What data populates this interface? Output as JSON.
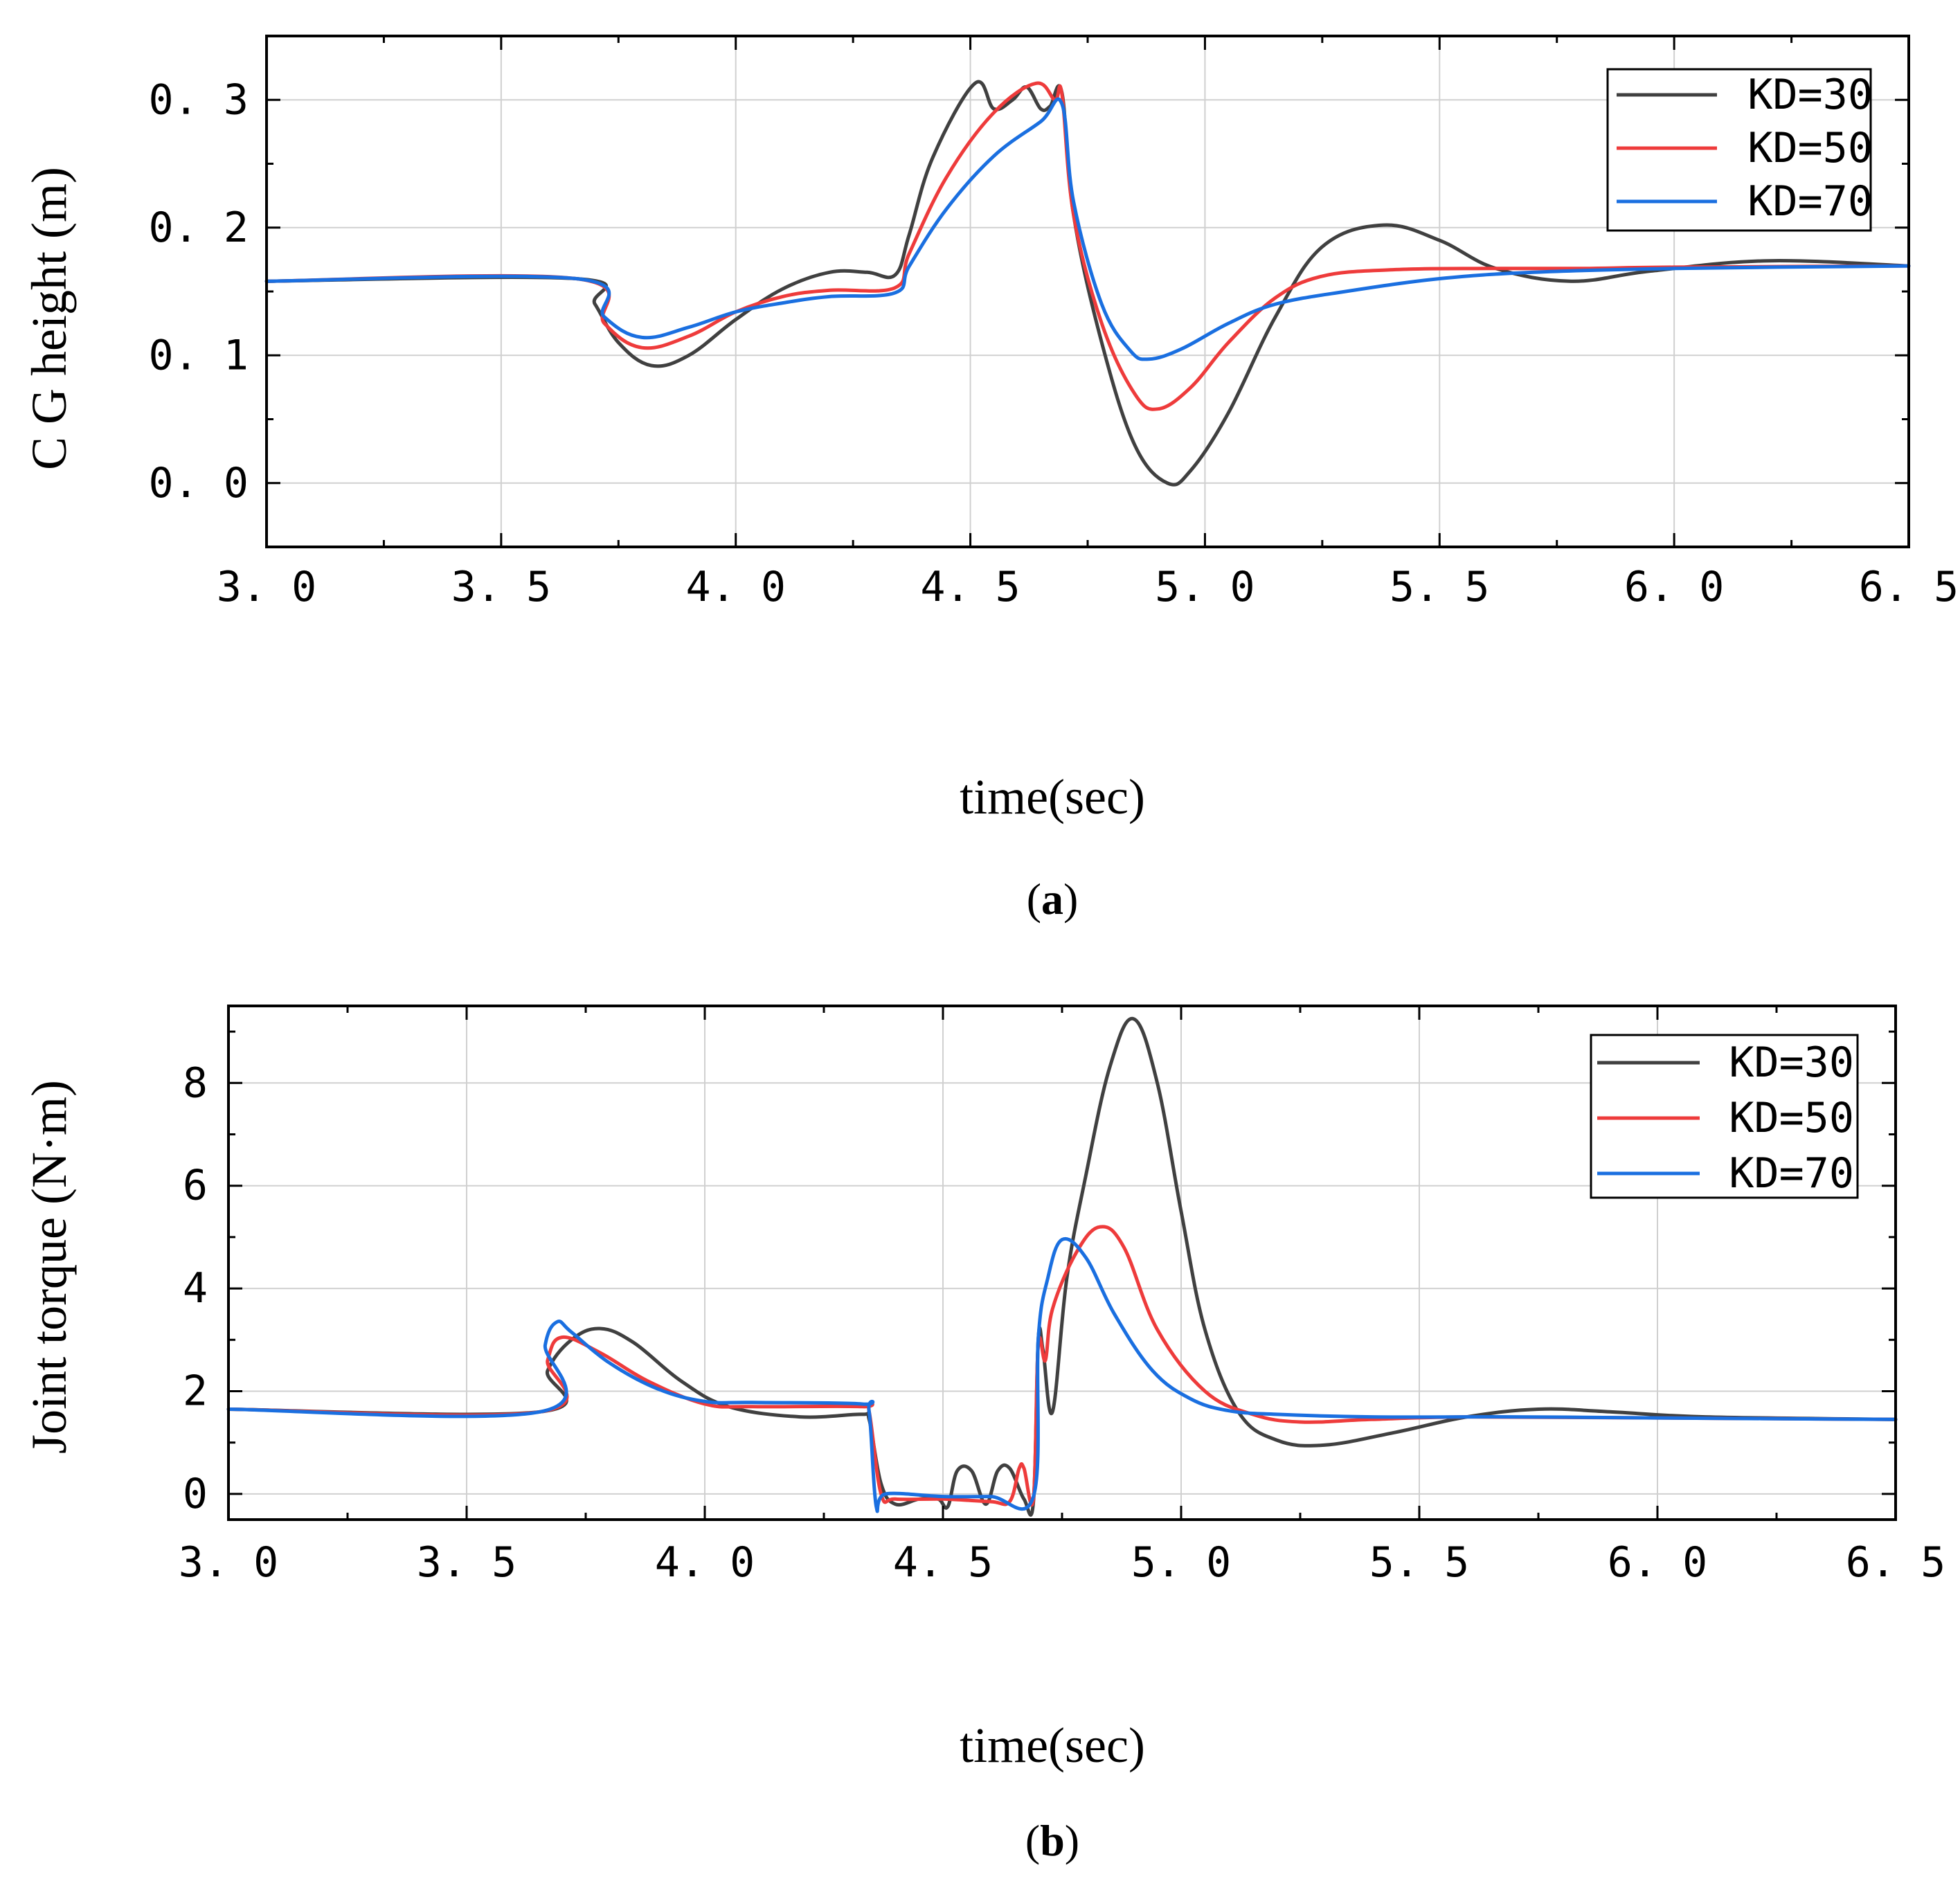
{
  "colors": {
    "KD=30": "#404040",
    "KD=50": "#ee3b3b",
    "KD=70": "#1a6fe0"
  },
  "chart_data": [
    {
      "type": "line",
      "panel_label": "a",
      "xlabel": "time(sec)",
      "ylabel": "C G height (m)",
      "xlim": [
        3.0,
        6.5
      ],
      "ylim": [
        -0.05,
        0.35
      ],
      "xticks": [
        3.0,
        3.5,
        4.0,
        4.5,
        5.0,
        5.5,
        6.0,
        6.5
      ],
      "xtick_labels": [
        "3. 0",
        "3. 5",
        "4. 0",
        "4. 5",
        "5. 0",
        "5. 5",
        "6. 0",
        "6. 5"
      ],
      "yticks": [
        0.0,
        0.1,
        0.2,
        0.3
      ],
      "ytick_labels": [
        "0. 0",
        "0. 1",
        "0. 2",
        "0. 3"
      ],
      "grid": true,
      "legend_position": "top-right",
      "series": [
        {
          "name": "KD=30",
          "x": [
            3.0,
            3.66,
            3.7,
            3.75,
            3.82,
            3.9,
            4.0,
            4.1,
            4.2,
            4.28,
            4.34,
            4.37,
            4.42,
            4.51,
            4.55,
            4.59,
            4.62,
            4.65,
            4.67,
            4.695,
            4.72,
            4.78,
            4.85,
            4.92,
            4.97,
            5.05,
            5.15,
            5.25,
            5.38,
            5.5,
            5.62,
            5.78,
            5.95,
            6.2,
            6.5
          ],
          "y": [
            0.158,
            0.16,
            0.14,
            0.11,
            0.092,
            0.1,
            0.128,
            0.152,
            0.165,
            0.165,
            0.163,
            0.195,
            0.255,
            0.313,
            0.293,
            0.3,
            0.31,
            0.293,
            0.295,
            0.306,
            0.21,
            0.11,
            0.03,
            0.0,
            0.01,
            0.055,
            0.13,
            0.185,
            0.202,
            0.19,
            0.168,
            0.158,
            0.166,
            0.174,
            0.17
          ]
        },
        {
          "name": "KD=50",
          "x": [
            3.0,
            3.66,
            3.72,
            3.8,
            3.9,
            4.0,
            4.1,
            4.2,
            4.34,
            4.37,
            4.45,
            4.55,
            4.64,
            4.68,
            4.695,
            4.72,
            4.78,
            4.85,
            4.9,
            4.97,
            5.05,
            5.15,
            5.25,
            5.4,
            5.6,
            5.8,
            6.0,
            6.5
          ],
          "y": [
            0.158,
            0.16,
            0.125,
            0.106,
            0.115,
            0.134,
            0.146,
            0.151,
            0.153,
            0.18,
            0.24,
            0.29,
            0.313,
            0.3,
            0.305,
            0.21,
            0.125,
            0.07,
            0.058,
            0.075,
            0.11,
            0.145,
            0.162,
            0.167,
            0.168,
            0.168,
            0.169,
            0.17
          ]
        },
        {
          "name": "KD=70",
          "x": [
            3.0,
            3.66,
            3.72,
            3.8,
            3.9,
            4.0,
            4.1,
            4.2,
            4.34,
            4.37,
            4.45,
            4.55,
            4.65,
            4.695,
            4.72,
            4.78,
            4.84,
            4.88,
            4.95,
            5.05,
            5.15,
            5.3,
            5.5,
            5.7,
            6.0,
            6.5
          ],
          "y": [
            0.158,
            0.16,
            0.13,
            0.114,
            0.122,
            0.134,
            0.141,
            0.146,
            0.149,
            0.17,
            0.215,
            0.256,
            0.283,
            0.297,
            0.22,
            0.14,
            0.104,
            0.097,
            0.105,
            0.125,
            0.14,
            0.15,
            0.16,
            0.165,
            0.168,
            0.17
          ]
        }
      ]
    },
    {
      "type": "line",
      "panel_label": "b",
      "xlabel": "time(sec)",
      "ylabel": "Joint torque (N·m)",
      "xlim": [
        3.0,
        6.5
      ],
      "ylim": [
        -0.5,
        9.5
      ],
      "xticks": [
        3.0,
        3.5,
        4.0,
        4.5,
        5.0,
        5.5,
        6.0,
        6.5
      ],
      "xtick_labels": [
        "3. 0",
        "3. 5",
        "4. 0",
        "4. 5",
        "5. 0",
        "5. 5",
        "6. 0",
        "6. 5"
      ],
      "yticks": [
        0,
        2,
        4,
        6,
        8
      ],
      "ytick_labels": [
        "0",
        "2",
        "4",
        "6",
        "8"
      ],
      "grid": true,
      "legend_position": "top-right",
      "series": [
        {
          "name": "KD=30",
          "x": [
            3.0,
            3.655,
            3.67,
            3.72,
            3.78,
            3.85,
            3.95,
            4.05,
            4.2,
            4.33,
            4.345,
            4.37,
            4.4,
            4.45,
            4.49,
            4.51,
            4.53,
            4.56,
            4.59,
            4.615,
            4.64,
            4.67,
            4.69,
            4.7,
            4.71,
            4.73,
            4.76,
            4.8,
            4.85,
            4.9,
            4.95,
            5.0,
            5.05,
            5.12,
            5.2,
            5.3,
            5.45,
            5.6,
            5.75,
            5.9,
            6.1,
            6.5
          ],
          "y": [
            1.65,
            1.6,
            2.4,
            3.0,
            3.22,
            2.95,
            2.2,
            1.7,
            1.5,
            1.55,
            1.45,
            0.2,
            -0.2,
            -0.1,
            -0.1,
            -0.25,
            0.45,
            0.45,
            -0.2,
            0.45,
            0.5,
            -0.1,
            -0.15,
            3.0,
            2.8,
            1.6,
            4.2,
            6.2,
            8.3,
            9.25,
            8.0,
            5.5,
            3.2,
            1.6,
            1.05,
            0.95,
            1.2,
            1.5,
            1.65,
            1.6,
            1.5,
            1.45
          ]
        },
        {
          "name": "KD=50",
          "x": [
            3.0,
            3.655,
            3.67,
            3.7,
            3.78,
            3.88,
            4.0,
            4.1,
            4.33,
            4.345,
            4.37,
            4.4,
            4.5,
            4.6,
            4.64,
            4.66,
            4.67,
            4.69,
            4.7,
            4.715,
            4.73,
            4.78,
            4.83,
            4.88,
            4.95,
            5.05,
            5.15,
            5.25,
            5.4,
            5.6,
            6.0,
            6.5
          ],
          "y": [
            1.65,
            1.6,
            2.6,
            3.05,
            2.75,
            2.2,
            1.75,
            1.7,
            1.7,
            1.6,
            0.0,
            -0.1,
            -0.1,
            -0.15,
            -0.15,
            0.5,
            0.5,
            -0.1,
            2.9,
            2.6,
            3.6,
            4.7,
            5.2,
            4.8,
            3.2,
            2.0,
            1.55,
            1.4,
            1.45,
            1.5,
            1.48,
            1.45
          ]
        },
        {
          "name": "KD=70",
          "x": [
            3.0,
            3.655,
            3.665,
            3.69,
            3.72,
            3.8,
            3.9,
            4.0,
            4.1,
            4.33,
            4.345,
            4.36,
            4.38,
            4.5,
            4.6,
            4.69,
            4.7,
            4.72,
            4.75,
            4.8,
            4.86,
            4.94,
            5.02,
            5.1,
            5.2,
            5.4,
            5.7,
            6.0,
            6.5
          ],
          "y": [
            1.65,
            1.6,
            2.9,
            3.35,
            3.15,
            2.55,
            2.05,
            1.8,
            1.78,
            1.75,
            1.6,
            -0.25,
            0.0,
            -0.05,
            -0.05,
            -0.05,
            3.0,
            4.2,
            4.95,
            4.6,
            3.5,
            2.4,
            1.85,
            1.62,
            1.55,
            1.5,
            1.5,
            1.48,
            1.45
          ]
        }
      ]
    }
  ]
}
